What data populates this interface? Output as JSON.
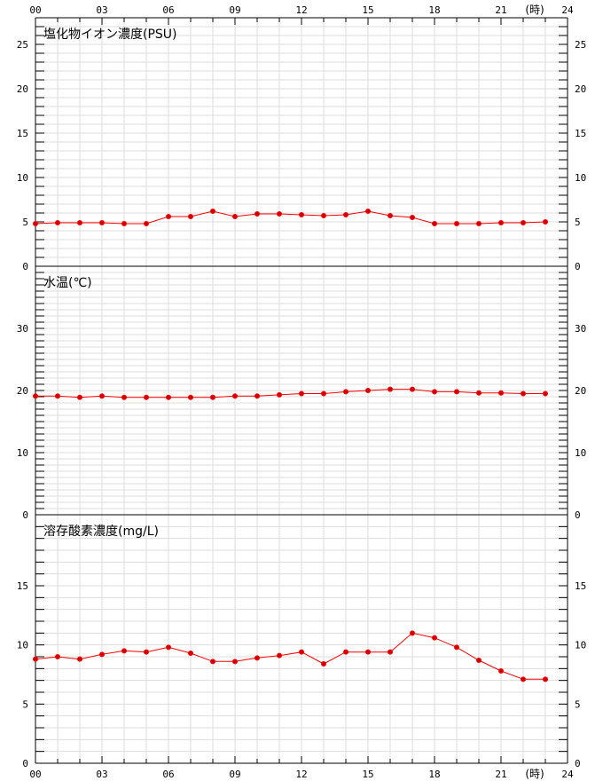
{
  "chart_data": {
    "type": "line",
    "x_unit": "(時)",
    "x_ticks": [
      "00",
      "03",
      "06",
      "09",
      "12",
      "15",
      "18",
      "21",
      "24"
    ],
    "xlim": [
      0,
      24
    ],
    "grid": true,
    "line_color": "#ff0000",
    "marker_fill": "#cc0000",
    "panels": [
      {
        "title": "塩化物イオン濃度(PSU)",
        "ylim": [
          0,
          28
        ],
        "y_ticks": [
          0,
          5,
          10,
          15,
          20,
          25
        ],
        "x": [
          0,
          1,
          2,
          3,
          4,
          5,
          6,
          7,
          8,
          9,
          10,
          11,
          12,
          13,
          14,
          15,
          16,
          17,
          18,
          19,
          20,
          21,
          22,
          23
        ],
        "values": [
          4.8,
          4.9,
          4.9,
          4.9,
          4.8,
          4.8,
          5.6,
          5.6,
          6.2,
          5.6,
          5.9,
          5.9,
          5.8,
          5.7,
          5.8,
          6.2,
          5.7,
          5.5,
          4.8,
          4.8,
          4.8,
          4.9,
          4.9,
          5.0
        ]
      },
      {
        "title": "水温(℃)",
        "ylim": [
          0,
          40
        ],
        "y_ticks": [
          0,
          10,
          20,
          30
        ],
        "x": [
          0,
          1,
          2,
          3,
          4,
          5,
          6,
          7,
          8,
          9,
          10,
          11,
          12,
          13,
          14,
          15,
          16,
          17,
          18,
          19,
          20,
          21,
          22,
          23
        ],
        "values": [
          19.1,
          19.1,
          18.9,
          19.1,
          18.9,
          18.9,
          18.9,
          18.9,
          18.9,
          19.1,
          19.1,
          19.3,
          19.5,
          19.5,
          19.8,
          20.0,
          20.2,
          20.2,
          19.8,
          19.8,
          19.6,
          19.6,
          19.5,
          19.5
        ]
      },
      {
        "title": "溶存酸素濃度(mg/L)",
        "ylim": [
          0,
          21
        ],
        "y_ticks": [
          0,
          5,
          10,
          15
        ],
        "x": [
          0,
          1,
          2,
          3,
          4,
          5,
          6,
          7,
          8,
          9,
          10,
          11,
          12,
          13,
          14,
          15,
          16,
          17,
          18,
          19,
          20,
          21,
          22,
          23
        ],
        "values": [
          8.8,
          9.0,
          8.8,
          9.2,
          9.5,
          9.4,
          9.8,
          9.3,
          8.6,
          8.6,
          8.9,
          9.1,
          9.4,
          8.4,
          9.4,
          9.4,
          9.4,
          11.0,
          10.6,
          9.8,
          8.7,
          7.8,
          7.1,
          7.1
        ]
      }
    ]
  }
}
